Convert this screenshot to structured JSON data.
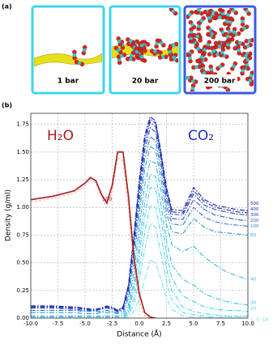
{
  "panel_a": {
    "label": "(a)",
    "captions": [
      "1 bar",
      "20 bar",
      "200 bar"
    ]
  },
  "chart_data": {
    "type": "line",
    "label": "(b)",
    "xlabel": "Distance (Å)",
    "ylabel": "Density (g/ml)",
    "annotations": [
      "H₂O",
      "CO₂"
    ],
    "xlim": [
      -10,
      10
    ],
    "xticks": [
      {
        "value": -10,
        "label": "-10.0"
      },
      {
        "value": -7.5,
        "label": "-7.5"
      },
      {
        "value": -5,
        "label": "-5.0"
      },
      {
        "value": -2.5,
        "label": "-2.5"
      },
      {
        "value": 0,
        "label": "0.0"
      },
      {
        "value": 2.5,
        "label": "2.5"
      },
      {
        "value": 5,
        "label": "5.0"
      },
      {
        "value": 7.5,
        "label": "7.5"
      },
      {
        "value": 10,
        "label": "10.0"
      }
    ],
    "ylim": [
      0,
      1.85
    ],
    "yticks": [
      {
        "value": 0,
        "label": "0.00"
      },
      {
        "value": 0.25,
        "label": "0.25"
      },
      {
        "value": 0.5,
        "label": "0.50"
      },
      {
        "value": 0.75,
        "label": "0.75"
      },
      {
        "value": 1,
        "label": "1.00"
      },
      {
        "value": 1.25,
        "label": "1.25"
      },
      {
        "value": 1.5,
        "label": "1.50"
      },
      {
        "value": 1.75,
        "label": "1.75"
      }
    ],
    "grid": true,
    "x": [
      -10,
      -8,
      -6,
      -5,
      -4.5,
      -4,
      -3.5,
      -3,
      -2.5,
      -2,
      -1.5,
      -1,
      -0.5,
      0,
      0.5,
      1,
      1.5,
      2,
      2.5,
      3,
      4,
      5,
      6,
      7,
      8,
      9,
      10
    ],
    "water_series": [
      {
        "color": "#e8a2a2",
        "dash": "3,2",
        "values": [
          1.05,
          1.08,
          1.13,
          1.2,
          1.25,
          1.22,
          1.1,
          1.0,
          1.15,
          1.45,
          1.42,
          1.0,
          0.45,
          0.15,
          0.02,
          0.0,
          null,
          null,
          null,
          null,
          null,
          null,
          null,
          null,
          null,
          null,
          null
        ]
      },
      {
        "name": "500",
        "color": "#a51c1c",
        "values": [
          1.07,
          1.1,
          1.15,
          1.22,
          1.27,
          1.24,
          1.12,
          1.04,
          1.2,
          1.5,
          1.5,
          1.1,
          0.55,
          0.22,
          0.05,
          0.01,
          0.0,
          null,
          null,
          null,
          null,
          null,
          null,
          null,
          null,
          null,
          null
        ]
      }
    ],
    "co2_dash": "6,2,1.5,2",
    "series": [
      {
        "name": "500",
        "color": "#1a1aa0",
        "values": [
          0.11,
          0.11,
          0.1,
          0.09,
          0.08,
          0.08,
          0.09,
          0.11,
          0.1,
          0.07,
          0.1,
          0.3,
          0.75,
          1.25,
          1.65,
          1.82,
          1.78,
          1.5,
          1.18,
          0.98,
          0.97,
          1.18,
          1.07,
          1.02,
          1.0,
          0.98,
          0.97
        ]
      },
      {
        "name": "400",
        "color": "#1f2fb0",
        "values": [
          0.1,
          0.1,
          0.1,
          0.09,
          0.08,
          0.08,
          0.09,
          0.1,
          0.09,
          0.07,
          0.1,
          0.29,
          0.73,
          1.22,
          1.62,
          1.8,
          1.76,
          1.48,
          1.16,
          0.96,
          0.95,
          1.15,
          1.05,
          1.0,
          0.98,
          0.96,
          0.95
        ]
      },
      {
        "name": "300",
        "color": "#2140c0",
        "values": [
          0.1,
          0.1,
          0.09,
          0.08,
          0.07,
          0.07,
          0.08,
          0.1,
          0.09,
          0.06,
          0.09,
          0.28,
          0.7,
          1.18,
          1.58,
          1.77,
          1.73,
          1.45,
          1.13,
          0.94,
          0.93,
          1.12,
          1.02,
          0.98,
          0.96,
          0.94,
          0.93
        ]
      },
      {
        "name": "200",
        "color": "#2856cc",
        "values": [
          0.09,
          0.09,
          0.08,
          0.07,
          0.07,
          0.07,
          0.08,
          0.09,
          0.08,
          0.06,
          0.08,
          0.26,
          0.66,
          1.12,
          1.52,
          1.72,
          1.68,
          1.4,
          1.08,
          0.9,
          0.89,
          1.07,
          0.98,
          0.93,
          0.91,
          0.89,
          0.88
        ]
      },
      {
        "name": "100",
        "color": "#2f78d6",
        "values": [
          0.07,
          0.07,
          0.07,
          0.06,
          0.06,
          0.06,
          0.06,
          0.07,
          0.06,
          0.05,
          0.07,
          0.22,
          0.6,
          1.04,
          1.44,
          1.64,
          1.6,
          1.33,
          1.02,
          0.85,
          0.84,
          1.0,
          0.91,
          0.87,
          0.85,
          0.84,
          0.83
        ]
      },
      {
        "name": "60",
        "color": "#339ad9",
        "values": [
          0.05,
          0.05,
          0.05,
          0.04,
          0.04,
          0.04,
          0.05,
          0.05,
          0.05,
          0.04,
          0.05,
          0.18,
          0.52,
          0.95,
          1.35,
          1.55,
          1.52,
          1.25,
          0.95,
          0.78,
          0.76,
          0.9,
          0.82,
          0.78,
          0.77,
          0.76,
          0.75
        ]
      },
      {
        "name": "40",
        "color": "#35b3dd",
        "values": [
          0.02,
          0.02,
          0.02,
          0.02,
          0.02,
          0.02,
          0.02,
          0.02,
          0.02,
          0.02,
          0.03,
          0.12,
          0.42,
          0.82,
          1.2,
          1.42,
          1.4,
          1.15,
          0.85,
          0.66,
          0.6,
          0.65,
          0.55,
          0.48,
          0.42,
          0.38,
          0.35
        ]
      },
      {
        "name": "30",
        "color": "#3ac3e3",
        "values": [
          0.01,
          0.01,
          0.01,
          0.01,
          0.01,
          0.01,
          0.01,
          0.01,
          0.01,
          0.01,
          0.01,
          0.08,
          0.32,
          0.68,
          1.05,
          1.3,
          1.28,
          1.02,
          0.7,
          0.48,
          0.35,
          0.3,
          0.22,
          0.18,
          0.15,
          0.13,
          0.12
        ]
      },
      {
        "name": "20",
        "color": "#45cfe8",
        "values": [
          0.01,
          0.01,
          0.01,
          0.01,
          0.01,
          0.01,
          0.01,
          0.01,
          0.01,
          0.01,
          0.01,
          0.06,
          0.26,
          0.58,
          0.92,
          1.18,
          1.17,
          0.9,
          0.58,
          0.36,
          0.2,
          0.15,
          0.1,
          0.08,
          0.07,
          0.07,
          0.06
        ]
      },
      {
        "name": "10",
        "color": "#55d8ec",
        "values": [
          0,
          0,
          0,
          0,
          0,
          0,
          0,
          0,
          0,
          0,
          0,
          0.04,
          0.18,
          0.45,
          0.78,
          1.02,
          1.0,
          0.75,
          0.45,
          0.25,
          0.1,
          0.06,
          0.04,
          0.03,
          0.02,
          0.02,
          0.02
        ]
      },
      {
        "name": "5",
        "color": "#65def0",
        "values": [
          0,
          0,
          0,
          0,
          0,
          0,
          0,
          0,
          0,
          0,
          0,
          0.03,
          0.12,
          0.35,
          0.62,
          0.85,
          0.82,
          0.58,
          0.33,
          0.16,
          0.05,
          0.03,
          0.02,
          0.01,
          0.01,
          0.01,
          0.01
        ]
      },
      {
        "name": "1",
        "color": "#7ae4f2",
        "values": [
          0,
          0,
          0,
          0,
          0,
          0,
          0,
          0,
          0,
          0,
          0,
          0.01,
          0.06,
          0.18,
          0.35,
          0.52,
          0.5,
          0.35,
          0.18,
          0.08,
          0.02,
          0.01,
          0.01,
          0,
          0,
          0,
          0
        ]
      }
    ]
  }
}
